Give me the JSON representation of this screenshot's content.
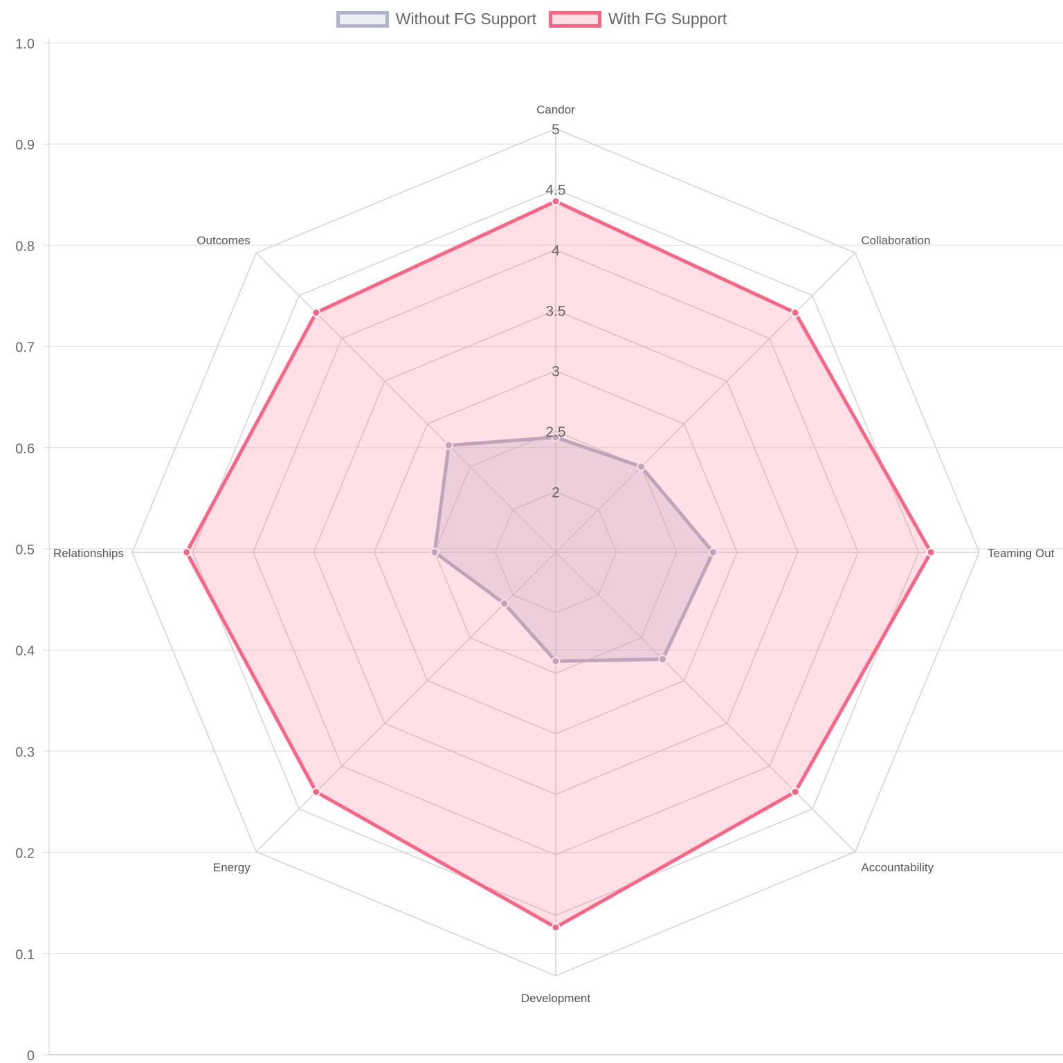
{
  "chart_data": {
    "type": "radar",
    "title": "",
    "categories": [
      "Candor",
      "Collaboration",
      "Teaming Out",
      "Accountability",
      "Development",
      "Energy",
      "Relationships",
      "Outcomes"
    ],
    "series": [
      {
        "name": "Without FG Support",
        "values": [
          2.45,
          2.5,
          2.8,
          2.75,
          2.4,
          2.1,
          2.5,
          2.75
        ],
        "border_color": "#b0b4c8",
        "fill_color": "rgba(190,194,214,0.35)"
      },
      {
        "name": "With FG Support",
        "values": [
          4.4,
          4.3,
          4.6,
          4.3,
          4.6,
          4.3,
          4.55,
          4.3
        ],
        "border_color": "#ff6384",
        "fill_color": "rgba(255,99,132,0.2)"
      }
    ],
    "radial_axis": {
      "min": 1.5,
      "max": 5.0,
      "ticks": [
        "2",
        "2.5",
        "3",
        "3.5",
        "4",
        "4.5",
        "5"
      ]
    },
    "cartesian_y_axis": {
      "min": 0,
      "max": 1.0,
      "ticks": [
        "0",
        "0.1",
        "0.2",
        "0.3",
        "0.4",
        "0.5",
        "0.6",
        "0.7",
        "0.8",
        "0.9",
        "1.0"
      ]
    },
    "legend_position": "top-center",
    "grid": true
  }
}
